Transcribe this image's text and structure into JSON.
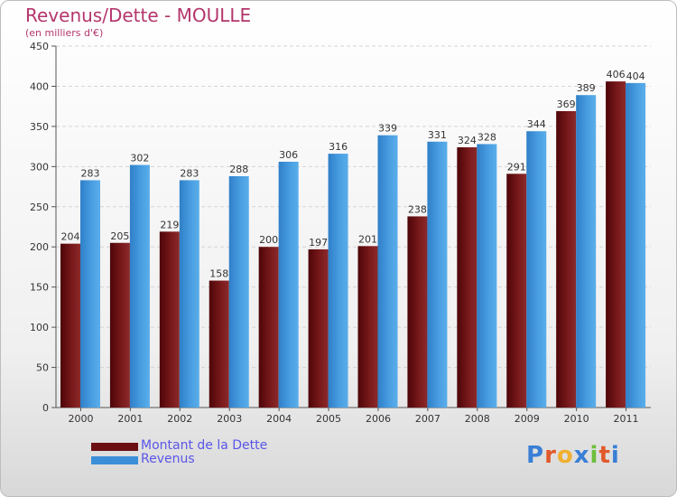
{
  "header": {
    "title": "Revenus/Dette - MOULLE",
    "subtitle": "(en milliers d'€)"
  },
  "legend": {
    "items": [
      {
        "label": "Montant de la Dette",
        "color": "#6b0f12"
      },
      {
        "label": "Revenus",
        "color": "#3b8fd9"
      }
    ]
  },
  "brand": {
    "letters": [
      "P",
      "r",
      "o",
      "x",
      "i",
      "t",
      "i"
    ],
    "colors": [
      "#3a7fd5",
      "#e0592a",
      "#f0b030",
      "#3a7fd5",
      "#6cbf3b",
      "#e0592a",
      "#3a7fd5"
    ]
  },
  "chart_data": {
    "type": "bar",
    "categories": [
      "2000",
      "2001",
      "2002",
      "2003",
      "2004",
      "2005",
      "2006",
      "2007",
      "2008",
      "2009",
      "2010",
      "2011"
    ],
    "series": [
      {
        "name": "Montant de la Dette",
        "color": "#6b0f12",
        "values": [
          204,
          205,
          219,
          158,
          200,
          197,
          201,
          238,
          324,
          291,
          369,
          406
        ]
      },
      {
        "name": "Revenus",
        "color": "#3b8fd9",
        "values": [
          283,
          302,
          283,
          288,
          306,
          316,
          339,
          331,
          328,
          344,
          389,
          404
        ]
      }
    ],
    "yticks": [
      0,
      50,
      100,
      150,
      200,
      250,
      300,
      350,
      400,
      450
    ],
    "ylim": [
      0,
      450
    ],
    "grid": true,
    "legend_position": "bottom-left"
  }
}
